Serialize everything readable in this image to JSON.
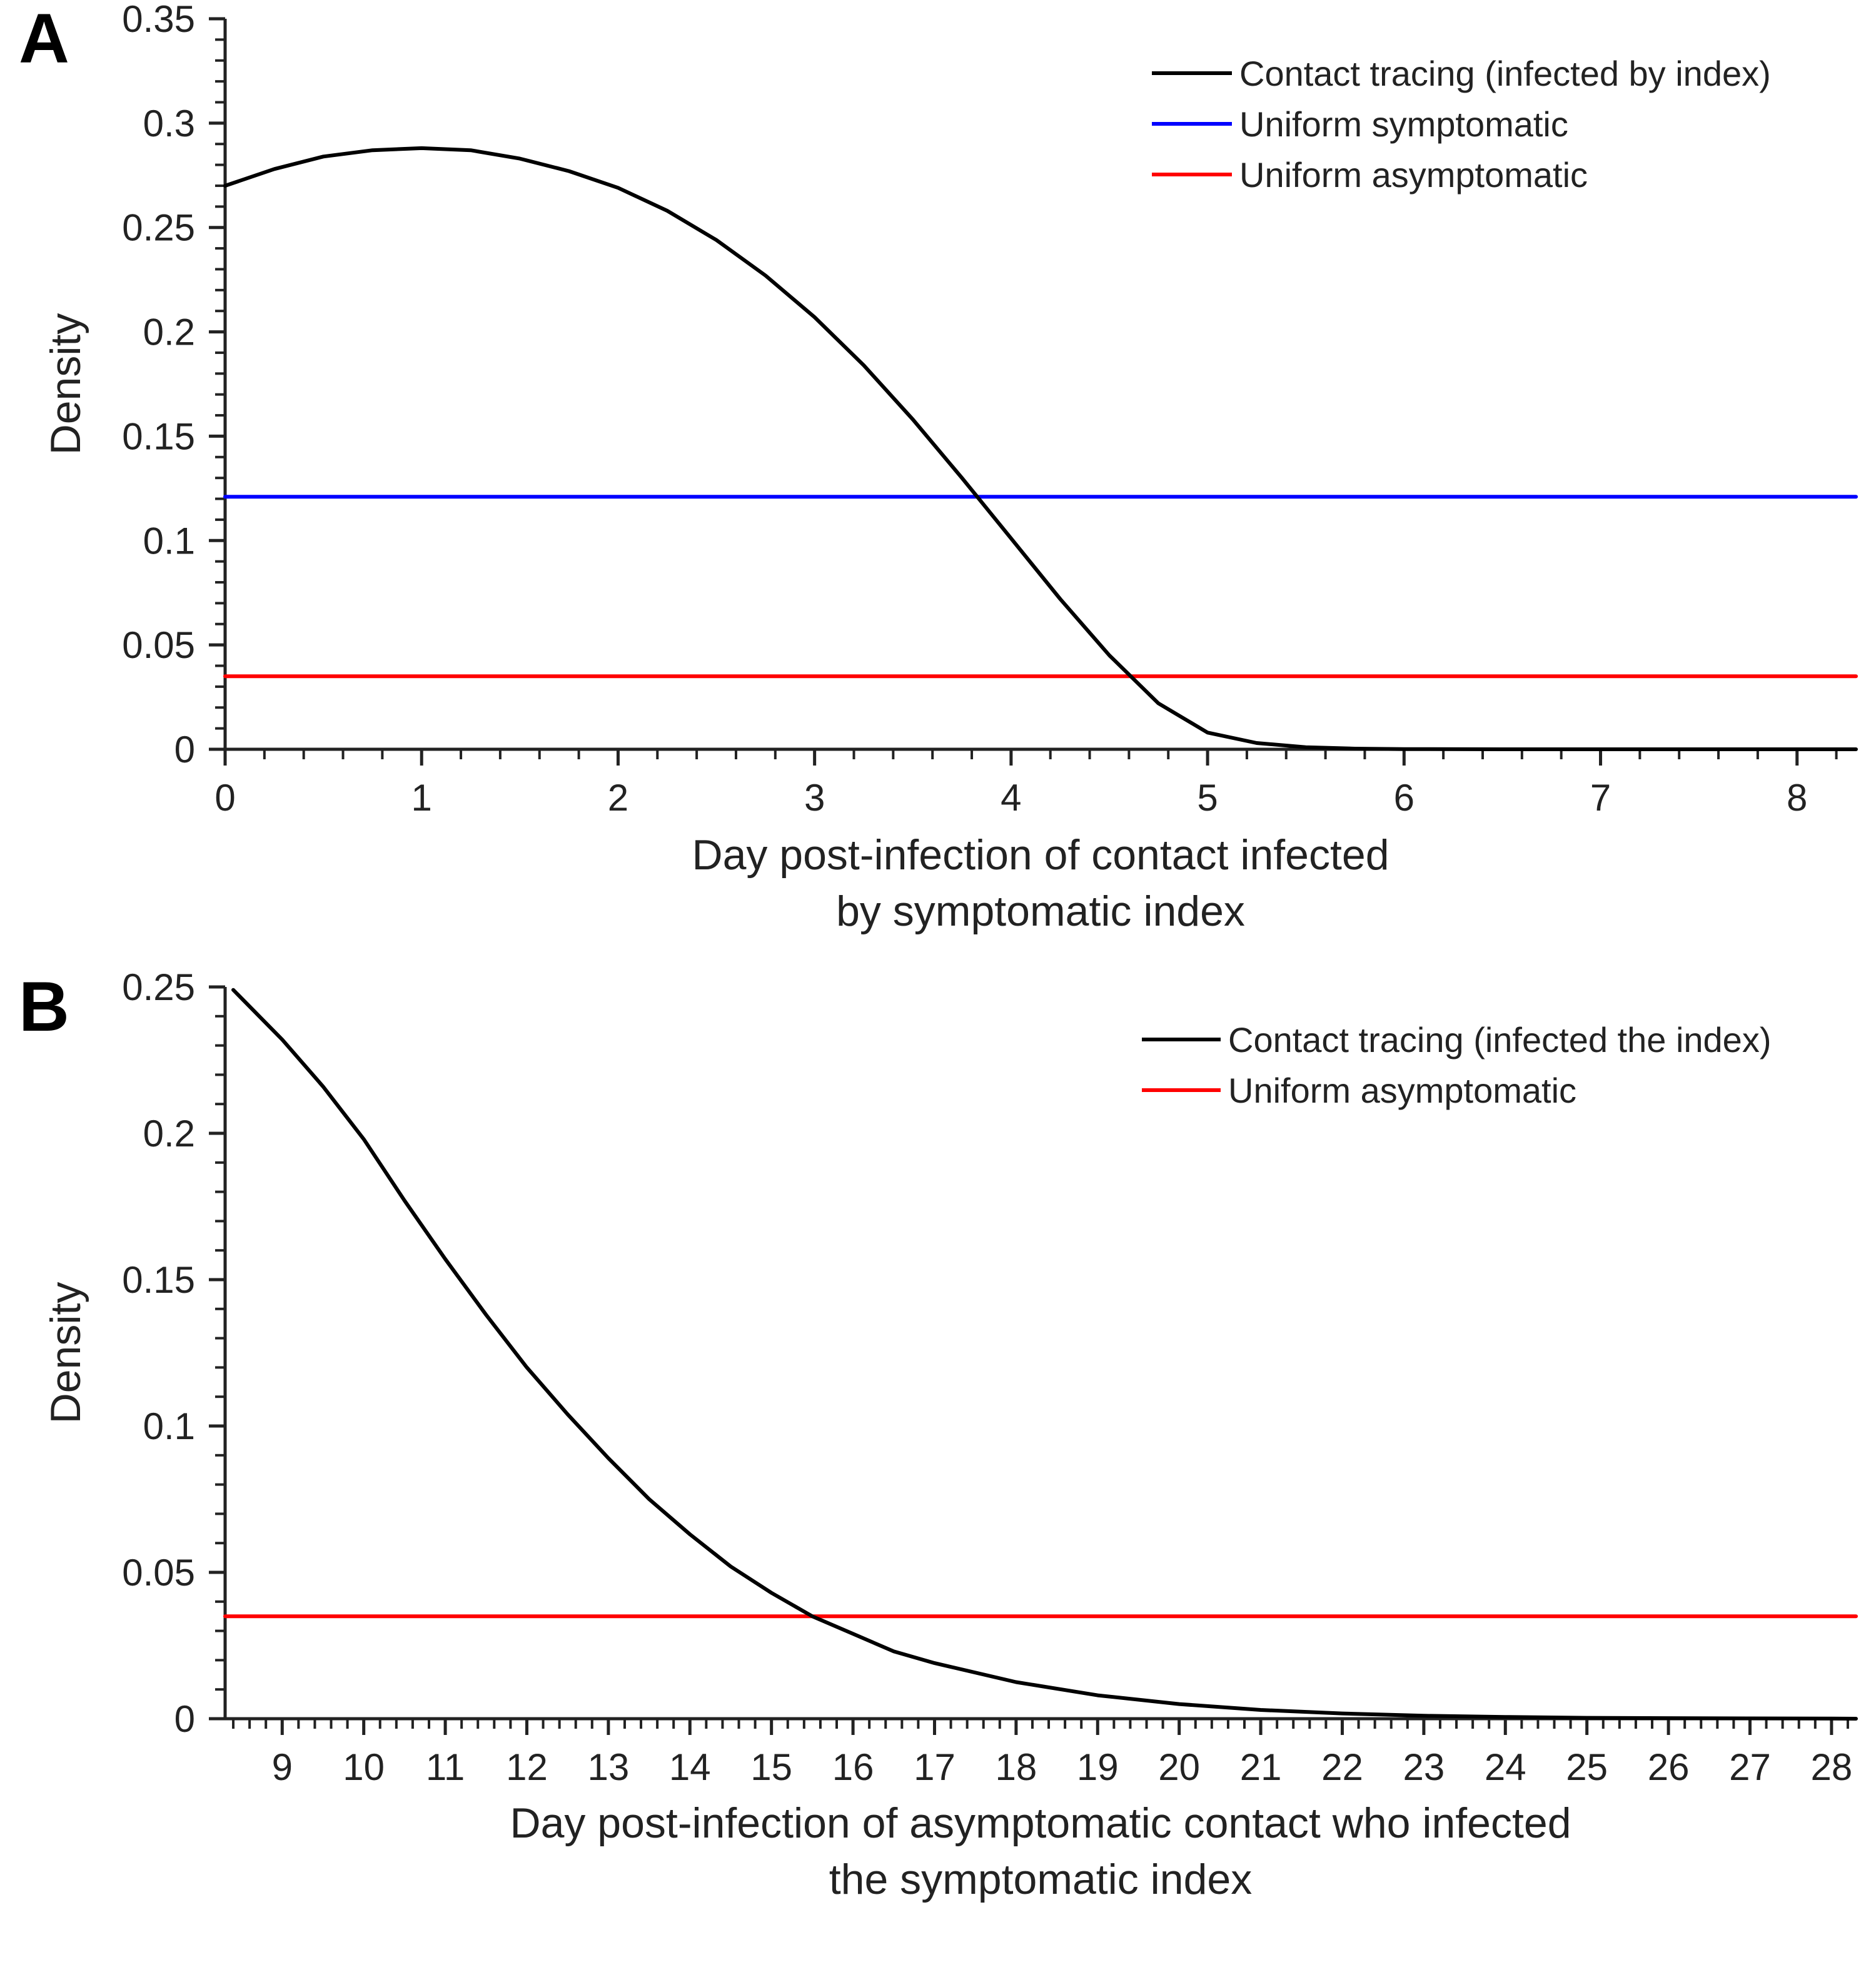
{
  "chart_data": [
    {
      "panel": "A",
      "type": "line",
      "xlabel": [
        "Day post-infection of contact infected",
        "by symptomatic index"
      ],
      "ylabel": "Density",
      "xlim": [
        0,
        8.3
      ],
      "ylim": [
        0,
        0.35
      ],
      "xticks": [
        "0",
        "1",
        "2",
        "3",
        "4",
        "5",
        "6",
        "7",
        "8"
      ],
      "yticks": [
        "0",
        "0.05",
        "0.1",
        "0.15",
        "0.2",
        "0.25",
        "0.3",
        "0.35"
      ],
      "grid": false,
      "legend_position": "top-right",
      "series": [
        {
          "name": "Contact tracing (infected by index)",
          "color": "#000000",
          "x": [
            0,
            0.25,
            0.5,
            0.75,
            1.0,
            1.25,
            1.5,
            1.75,
            2.0,
            2.25,
            2.5,
            2.75,
            3.0,
            3.25,
            3.5,
            3.75,
            4.0,
            4.25,
            4.5,
            4.75,
            5.0,
            5.25,
            5.5,
            5.75,
            6.0,
            6.5,
            7.0,
            7.5,
            8.0,
            8.3
          ],
          "y": [
            0.27,
            0.278,
            0.284,
            0.287,
            0.288,
            0.287,
            0.283,
            0.277,
            0.269,
            0.258,
            0.244,
            0.227,
            0.207,
            0.184,
            0.158,
            0.13,
            0.101,
            0.072,
            0.045,
            0.022,
            0.008,
            0.003,
            0.001,
            0.0003,
            0.0001,
            0,
            0,
            0,
            0,
            0
          ]
        },
        {
          "name": "Uniform symptomatic",
          "color": "#0000ff",
          "x": [
            0,
            8.3
          ],
          "y": [
            0.121,
            0.121
          ]
        },
        {
          "name": "Uniform asymptomatic",
          "color": "#ff0000",
          "x": [
            0,
            8.3
          ],
          "y": [
            0.035,
            0.035
          ]
        }
      ]
    },
    {
      "panel": "B",
      "type": "line",
      "xlabel": [
        "Day post-infection of asymptomatic contact who infected",
        "the symptomatic index"
      ],
      "ylabel": "Density",
      "xlim": [
        8.3,
        28.3
      ],
      "ylim": [
        0,
        0.25
      ],
      "xticks": [
        "9",
        "10",
        "11",
        "12",
        "13",
        "14",
        "15",
        "16",
        "17",
        "18",
        "19",
        "20",
        "21",
        "22",
        "23",
        "24",
        "25",
        "26",
        "27",
        "28"
      ],
      "yticks": [
        "0",
        "0.05",
        "0.1",
        "0.15",
        "0.2",
        "0.25"
      ],
      "grid": false,
      "legend_position": "top-right",
      "series": [
        {
          "name": "Contact tracing (infected the index)",
          "color": "#000000",
          "x": [
            8.4,
            9.0,
            9.5,
            10.0,
            10.5,
            11.0,
            11.5,
            12.0,
            12.5,
            13.0,
            13.5,
            14.0,
            14.5,
            15.0,
            15.5,
            16.0,
            16.5,
            17.0,
            18.0,
            19.0,
            20.0,
            21.0,
            22.0,
            23.0,
            24.0,
            25.0,
            26.0,
            27.0,
            28.0,
            28.3
          ],
          "y": [
            0.249,
            0.232,
            0.216,
            0.198,
            0.177,
            0.157,
            0.138,
            0.12,
            0.104,
            0.089,
            0.075,
            0.063,
            0.052,
            0.043,
            0.035,
            0.029,
            0.023,
            0.019,
            0.0125,
            0.008,
            0.005,
            0.003,
            0.0018,
            0.001,
            0.0006,
            0.0003,
            0.0002,
            0.0001,
            5e-05,
            0
          ]
        },
        {
          "name": "Uniform asymptomatic",
          "color": "#ff0000",
          "x": [
            8.3,
            28.3
          ],
          "y": [
            0.035,
            0.035
          ]
        }
      ]
    }
  ]
}
